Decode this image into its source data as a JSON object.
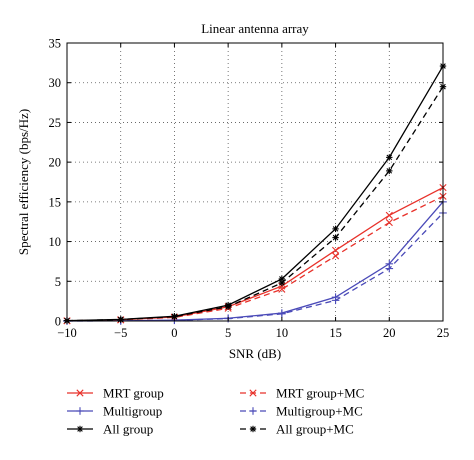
{
  "chart_data": {
    "type": "line",
    "title": "Linear antenna array",
    "xlabel": "SNR (dB)",
    "ylabel": "Spectral efficiency (bps/Hz)",
    "xlim": [
      -10,
      25
    ],
    "ylim": [
      0,
      35
    ],
    "xticks": [
      -10,
      -5,
      0,
      5,
      10,
      15,
      20,
      25
    ],
    "yticks": [
      0,
      5,
      10,
      15,
      20,
      25,
      30,
      35
    ],
    "grid": true,
    "legend_position": "bottom",
    "x": [
      -10,
      -5,
      0,
      5,
      10,
      15,
      20,
      25
    ],
    "series": [
      {
        "name": "MRT group",
        "color": "#e8312a",
        "dash": "solid",
        "marker": "x",
        "values": [
          0.02,
          0.15,
          0.5,
          1.8,
          4.4,
          8.9,
          13.3,
          16.8
        ]
      },
      {
        "name": "MRT group+MC",
        "color": "#e8312a",
        "dash": "dashed",
        "marker": "x",
        "values": [
          0.02,
          0.14,
          0.45,
          1.6,
          4.0,
          8.2,
          12.4,
          15.7
        ]
      },
      {
        "name": "Multigroup",
        "color": "#4a4ab8",
        "dash": "solid",
        "marker": "plus",
        "values": [
          0.0,
          0.02,
          0.1,
          0.35,
          1.0,
          3.0,
          7.2,
          15.0
        ]
      },
      {
        "name": "Multigroup+MC",
        "color": "#4a4ab8",
        "dash": "dashed",
        "marker": "plus",
        "values": [
          0.0,
          0.02,
          0.09,
          0.3,
          0.9,
          2.6,
          6.6,
          13.6
        ]
      },
      {
        "name": "All group",
        "color": "#000000",
        "dash": "solid",
        "marker": "star",
        "values": [
          0.05,
          0.2,
          0.6,
          2.0,
          5.3,
          11.6,
          20.6,
          32.1
        ]
      },
      {
        "name": "All group+MC",
        "color": "#000000",
        "dash": "dashed",
        "marker": "star",
        "values": [
          0.04,
          0.18,
          0.55,
          1.8,
          4.8,
          10.5,
          18.9,
          29.5
        ]
      }
    ],
    "legend": [
      {
        "label": "MRT group",
        "series": 0
      },
      {
        "label": "MRT group+MC",
        "series": 1
      },
      {
        "label": "Multigroup",
        "series": 2
      },
      {
        "label": "Multigroup+MC",
        "series": 3
      },
      {
        "label": "All group",
        "series": 4
      },
      {
        "label": "All group+MC",
        "series": 5
      }
    ]
  }
}
